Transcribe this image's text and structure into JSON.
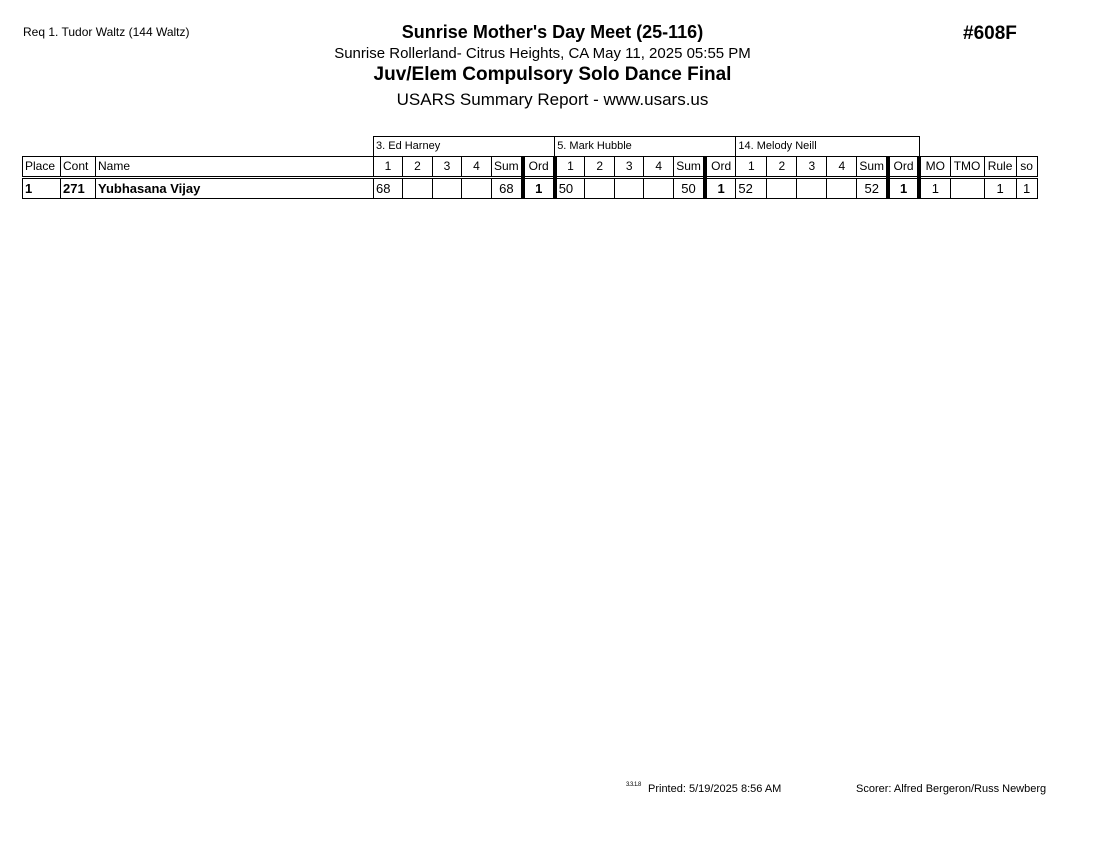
{
  "header": {
    "request": "Req  1.  Tudor Waltz (144 Waltz)",
    "meet_title": "Sunrise Mother's Day Meet (25-116)",
    "location_date": "Sunrise Rollerland- Citrus Heights, CA  May 11, 2025  05:55 PM",
    "event": "Juv/Elem Compulsory Solo Dance Final",
    "report": "USARS Summary Report - www.usars.us",
    "event_code": "#608F"
  },
  "table": {
    "judges": [
      "3.  Ed  Harney",
      "5.  Mark Hubble",
      "14.  Melody Neill"
    ],
    "columns": {
      "place": "Place",
      "cont": "Cont",
      "name": "Name",
      "judge_cols": [
        "1",
        "2",
        "3",
        "4",
        "Sum",
        "Ord"
      ],
      "mo": "MO",
      "tmo": "TMO",
      "rule": "Rule",
      "so": "so"
    },
    "rows": [
      {
        "place": "1",
        "cont": "271",
        "name": "Yubhasana Vijay",
        "judges": [
          {
            "s1": "68",
            "s2": "",
            "s3": "",
            "s4": "",
            "sum": "68",
            "ord": "1"
          },
          {
            "s1": "50",
            "s2": "",
            "s3": "",
            "s4": "",
            "sum": "50",
            "ord": "1"
          },
          {
            "s1": "52",
            "s2": "",
            "s3": "",
            "s4": "",
            "sum": "52",
            "ord": "1"
          }
        ],
        "mo": "1",
        "tmo": "",
        "rule": "1",
        "so": "1"
      }
    ]
  },
  "footer": {
    "version": "3.3.1.8",
    "printed": "Printed:  5/19/2025  8:56 AM",
    "scorer": "Scorer:   Alfred Bergeron/Russ Newberg"
  }
}
